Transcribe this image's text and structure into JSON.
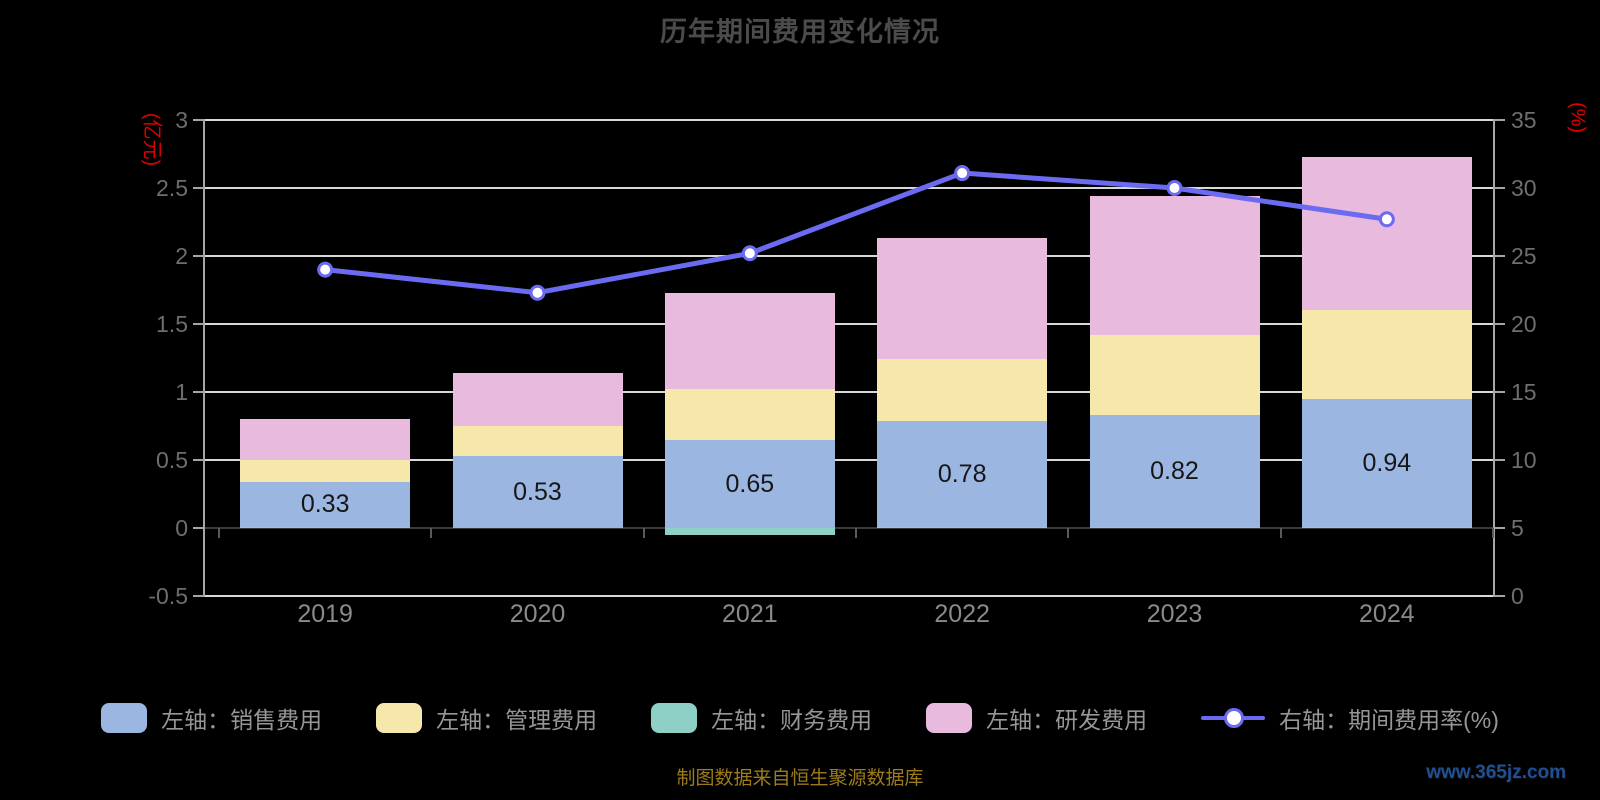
{
  "title": "历年期间费用变化情况",
  "footnote": "制图数据来自恒生聚源数据库",
  "watermark": "www.365jz.com",
  "colors": {
    "sales": "#9cb6e2",
    "admin": "#f6e8ab",
    "finance": "#8ed0c6",
    "rd": "#e8badd",
    "line": "#6b6bf2",
    "grid": "#d9d9d9",
    "zero_axis": "#3a3a3a",
    "axis": "#a6a6a6",
    "tick_label": "#6e6e6e",
    "year_label": "#8a8a8a",
    "title": "#4b4b4b",
    "unit_label_red": "#e00000",
    "legend_text": "#969696",
    "footnote_gold": "#9c7b1c",
    "watermark_blue": "#204f92"
  },
  "left_axis": {
    "unit": "(亿元)",
    "ticks": [
      "3",
      "2.5",
      "2",
      "1.5",
      "1",
      "0.5",
      "0",
      "-0.5"
    ],
    "min": -0.5,
    "max": 3
  },
  "right_axis": {
    "unit": "(%)",
    "ticks": [
      "35",
      "30",
      "25",
      "20",
      "15",
      "10",
      "5",
      "0"
    ],
    "min": 0,
    "max": 35
  },
  "legend": [
    {
      "label": "左轴：销售费用",
      "marker": "sales"
    },
    {
      "label": "左轴：管理费用",
      "marker": "admin"
    },
    {
      "label": "左轴：财务费用",
      "marker": "finance"
    },
    {
      "label": "左轴：研发费用",
      "marker": "rd"
    },
    {
      "label": "右轴：期间费用率(%)",
      "marker": "line"
    }
  ],
  "chart_data": {
    "type": "bar",
    "subtype": "stacked-bars-with-line",
    "categories": [
      "2019",
      "2020",
      "2021",
      "2022",
      "2023",
      "2024"
    ],
    "series": [
      {
        "name": "左轴：销售费用",
        "type": "bar",
        "axis": "left",
        "color_key": "sales",
        "values": [
          0.33,
          0.53,
          0.65,
          0.78,
          0.82,
          0.94
        ]
      },
      {
        "name": "左轴：管理费用",
        "type": "bar",
        "axis": "left",
        "color_key": "admin",
        "values": [
          0.16,
          0.22,
          0.37,
          0.45,
          0.59,
          0.65
        ]
      },
      {
        "name": "左轴：财务费用",
        "type": "bar",
        "axis": "left",
        "color_key": "finance",
        "values": [
          0.01,
          0.0,
          -0.05,
          0.01,
          0.01,
          0.01
        ]
      },
      {
        "name": "左轴：研发费用",
        "type": "bar",
        "axis": "left",
        "color_key": "rd",
        "values": [
          0.3,
          0.39,
          0.71,
          0.89,
          1.02,
          1.13
        ]
      },
      {
        "name": "右轴：期间费用率(%)",
        "type": "line",
        "axis": "right",
        "color_key": "line",
        "values": [
          24.0,
          22.3,
          25.2,
          31.1,
          30.0,
          27.7
        ]
      }
    ],
    "bar_value_labels": [
      "0.33",
      "0.53",
      "0.65",
      "0.78",
      "0.82",
      "0.94"
    ],
    "bar_label_series": "左轴：销售费用",
    "title": "历年期间费用变化情况",
    "xlabel": "",
    "ylabel_left": "(亿元)",
    "ylabel_right": "(%)",
    "ylim_left": [
      -0.5,
      3
    ],
    "ylim_right": [
      0,
      35
    ],
    "grid": true,
    "legend_position": "bottom"
  }
}
